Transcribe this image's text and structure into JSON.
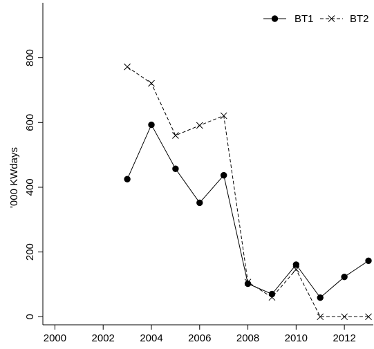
{
  "chart_data": {
    "type": "line",
    "title": "",
    "xlabel": "",
    "ylabel": "'000 KWdays",
    "xlim": [
      1999.5,
      2013.2
    ],
    "ylim": [
      -25,
      970
    ],
    "x_ticks": [
      2000,
      2002,
      2004,
      2006,
      2008,
      2010,
      2012
    ],
    "y_ticks": [
      0,
      200,
      400,
      600,
      800
    ],
    "legend_position": "top-right",
    "grid": false,
    "series": [
      {
        "name": "BT1",
        "style": "solid",
        "marker": "filled-circle",
        "color": "#000000",
        "x": [
          2003,
          2004,
          2005,
          2006,
          2007,
          2008,
          2009,
          2010,
          2011,
          2012,
          2013
        ],
        "values": [
          425,
          593,
          457,
          352,
          437,
          102,
          70,
          161,
          59,
          123,
          173
        ]
      },
      {
        "name": "BT2",
        "style": "dashed",
        "marker": "x",
        "color": "#000000",
        "x": [
          2003,
          2004,
          2005,
          2006,
          2007,
          2008,
          2009,
          2010,
          2011,
          2012,
          2013
        ],
        "values": [
          772,
          721,
          560,
          591,
          621,
          107,
          60,
          146,
          0,
          0,
          0
        ]
      }
    ]
  }
}
